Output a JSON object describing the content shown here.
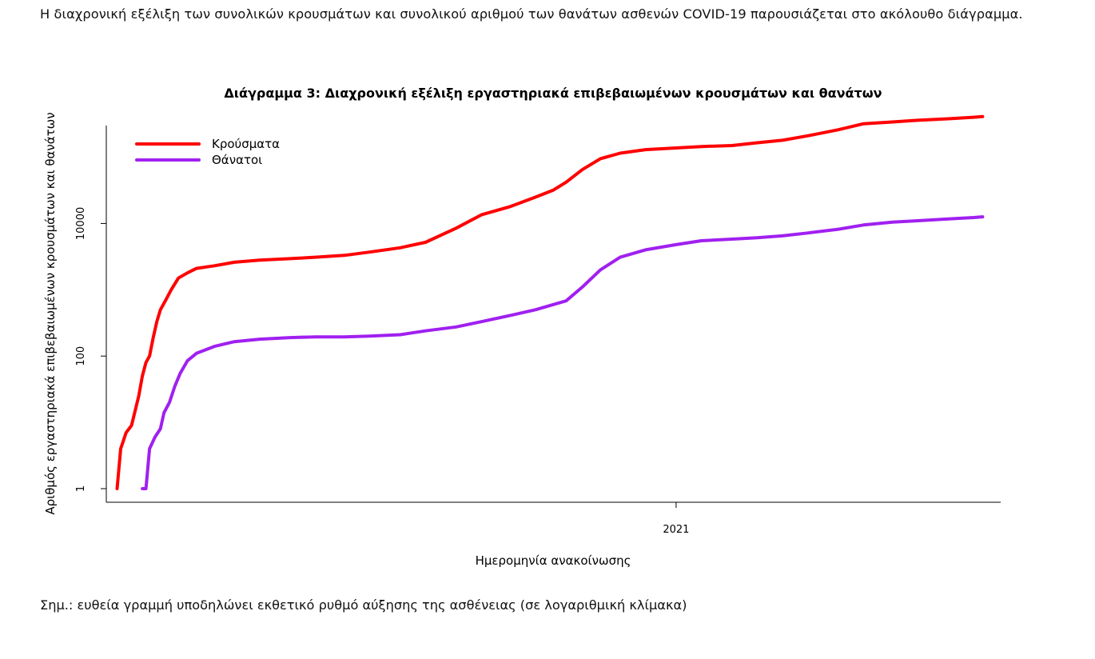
{
  "intro_text": "Η διαχρονική εξέλιξη των συνολικών κρουσμάτων και συνολικού αριθμού των θανάτων ασθενών COVID-19 παρουσιάζεται στο ακόλουθο διάγραμμα.",
  "note_text": "Σημ.: ευθεία γραμμή υποδηλώνει εκθετικό ρυθμό αύξησης της ασθένειας (σε λογαριθμική κλίμακα)",
  "colors": {
    "cases": "#ff0000",
    "deaths": "#a020f0",
    "axis": "#000000"
  },
  "chart_data": {
    "type": "line",
    "title": "Διάγραμμα 3: Διαχρονική εξέλιξη εργαστηριακά επιβεβαιωμένων κρουσμάτων και θανάτων",
    "xlabel": "Ημερομηνία ανακοίνωσης",
    "ylabel": "Αριθμός εργαστηριακά επιβεβαιωμένων κρουσμάτων και θανάτων",
    "yscale": "log",
    "ylim": [
      1,
      300000
    ],
    "xlim": [
      "2020-02-20",
      "2021-06-30"
    ],
    "y_ticks": [
      {
        "value": 1,
        "label": "1"
      },
      {
        "value": 100,
        "label": "100"
      },
      {
        "value": 10000,
        "label": "10000"
      }
    ],
    "x_ticks": [
      {
        "value": "2021-01-01",
        "label": "2021"
      }
    ],
    "grid": false,
    "legend_position": "top-left",
    "series": [
      {
        "name": "Κρούσματα",
        "color": "#ff0000",
        "x": [
          "2020-02-26",
          "2020-02-28",
          "2020-03-02",
          "2020-03-05",
          "2020-03-07",
          "2020-03-09",
          "2020-03-11",
          "2020-03-13",
          "2020-03-15",
          "2020-03-17",
          "2020-03-19",
          "2020-03-21",
          "2020-03-24",
          "2020-03-27",
          "2020-03-31",
          "2020-04-05",
          "2020-04-10",
          "2020-04-20",
          "2020-05-01",
          "2020-05-15",
          "2020-06-01",
          "2020-06-15",
          "2020-07-01",
          "2020-07-15",
          "2020-08-01",
          "2020-08-15",
          "2020-09-01",
          "2020-09-15",
          "2020-10-01",
          "2020-10-15",
          "2020-10-25",
          "2020-11-01",
          "2020-11-10",
          "2020-11-20",
          "2020-12-01",
          "2020-12-15",
          "2021-01-01",
          "2021-01-15",
          "2021-02-01",
          "2021-02-15",
          "2021-03-01",
          "2021-03-15",
          "2021-04-01",
          "2021-04-15",
          "2021-05-01",
          "2021-05-15",
          "2021-06-01",
          "2021-06-15",
          "2021-06-20"
        ],
        "values": [
          1,
          4,
          7,
          9,
          15,
          25,
          50,
          80,
          100,
          190,
          330,
          500,
          700,
          1000,
          1500,
          1800,
          2100,
          2300,
          2600,
          2800,
          2950,
          3100,
          3300,
          3700,
          4300,
          5200,
          8500,
          13500,
          18000,
          25000,
          32000,
          42000,
          65000,
          95000,
          115000,
          130000,
          138000,
          145000,
          150000,
          165000,
          180000,
          210000,
          260000,
          320000,
          340000,
          360000,
          380000,
          400000,
          410000
        ]
      },
      {
        "name": "Θάνατοι",
        "color": "#a020f0",
        "x": [
          "2020-03-11",
          "2020-03-13",
          "2020-03-15",
          "2020-03-18",
          "2020-03-21",
          "2020-03-23",
          "2020-03-26",
          "2020-03-29",
          "2020-04-01",
          "2020-04-05",
          "2020-04-10",
          "2020-04-20",
          "2020-05-01",
          "2020-05-15",
          "2020-06-01",
          "2020-06-15",
          "2020-07-01",
          "2020-07-15",
          "2020-08-01",
          "2020-08-15",
          "2020-09-01",
          "2020-09-15",
          "2020-10-01",
          "2020-10-15",
          "2020-11-01",
          "2020-11-10",
          "2020-11-20",
          "2020-12-01",
          "2020-12-15",
          "2021-01-01",
          "2021-01-15",
          "2021-02-01",
          "2021-02-15",
          "2021-03-01",
          "2021-03-15",
          "2021-04-01",
          "2021-04-15",
          "2021-05-01",
          "2021-05-15",
          "2021-06-01",
          "2021-06-15",
          "2021-06-20"
        ],
        "values": [
          1,
          1,
          4,
          6,
          8,
          14,
          20,
          35,
          55,
          85,
          110,
          140,
          165,
          180,
          190,
          195,
          195,
          200,
          210,
          240,
          275,
          330,
          410,
          500,
          680,
          1100,
          2000,
          3100,
          4000,
          4800,
          5500,
          5800,
          6100,
          6500,
          7200,
          8200,
          9500,
          10500,
          11000,
          11700,
          12300,
          12600
        ]
      }
    ]
  }
}
